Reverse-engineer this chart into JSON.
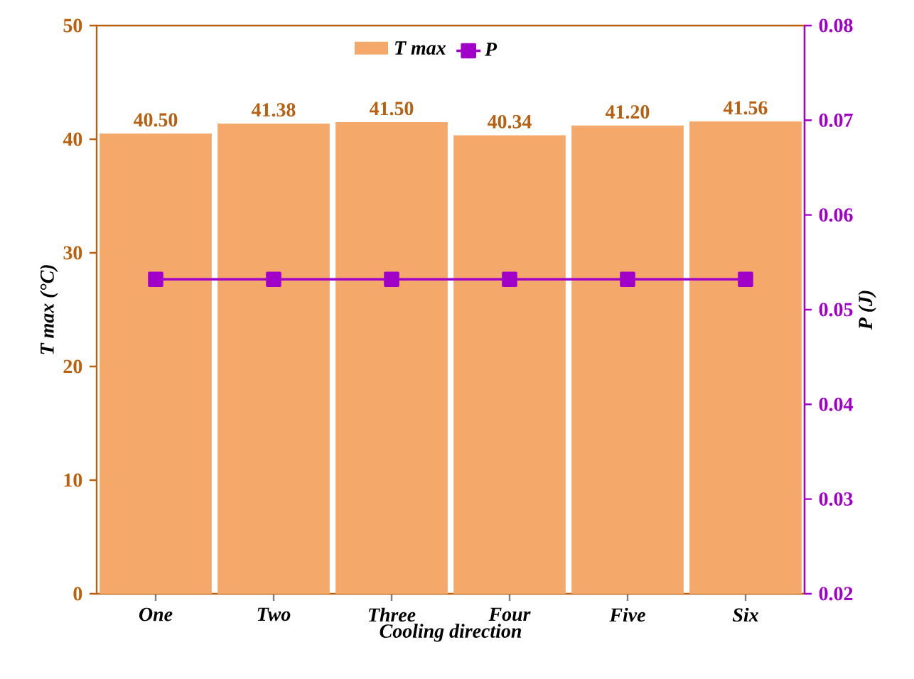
{
  "chart_data": {
    "type": "bar",
    "xlabel": "Cooling direction",
    "ylabel": "T max (°C)",
    "y2label": "P (J)",
    "categories": [
      "One",
      "Two",
      "Three",
      "Four",
      "Five",
      "Six"
    ],
    "series": [
      {
        "name": "T max",
        "color": "#f4a86a",
        "values": [
          40.5,
          41.38,
          41.5,
          40.34,
          41.2,
          41.56
        ],
        "value_labels": [
          "40.50",
          "41.38",
          "41.50",
          "40.34",
          "41.20",
          "41.56"
        ]
      },
      {
        "name": "P",
        "type": "line",
        "axis": "y2",
        "color": "#a000c8",
        "values": [
          0.0532,
          0.0532,
          0.0532,
          0.0532,
          0.0532,
          0.0532
        ]
      }
    ],
    "ylim": [
      0,
      50
    ],
    "yticks": [
      0,
      10,
      20,
      30,
      40,
      50
    ],
    "y2lim": [
      0.02,
      0.08
    ],
    "y2ticks": [
      0.02,
      0.03,
      0.04,
      0.05,
      0.06,
      0.07,
      0.08
    ],
    "legend": "top",
    "marker": "square"
  }
}
